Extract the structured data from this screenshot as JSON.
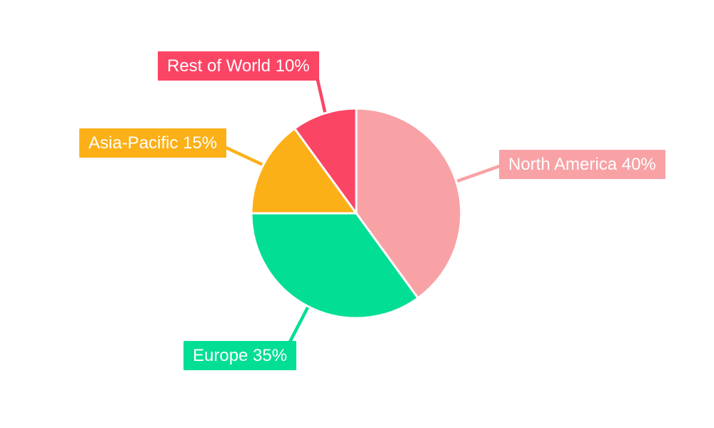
{
  "chart_data": {
    "type": "pie",
    "title": "",
    "legend": "none",
    "background_color": "#ffffff",
    "label_style": "colored callout boxes with white text and leader lines",
    "start_angle": "12 o'clock",
    "direction": "clockwise",
    "slice_border_color": "#ffffff",
    "slices": [
      {
        "name": "North America",
        "value": 40,
        "unit": "%",
        "label": "North America 40%",
        "color": "#F8A2A6"
      },
      {
        "name": "Europe",
        "value": 35,
        "unit": "%",
        "label": "Europe 35%",
        "color": "#02DE94"
      },
      {
        "name": "Asia-Pacific",
        "value": 15,
        "unit": "%",
        "label": "Asia-Pacific 15%",
        "color": "#FCB017"
      },
      {
        "name": "Rest of World",
        "value": 10,
        "unit": "%",
        "label": "Rest of World 10%",
        "color": "#FB4565"
      }
    ]
  }
}
